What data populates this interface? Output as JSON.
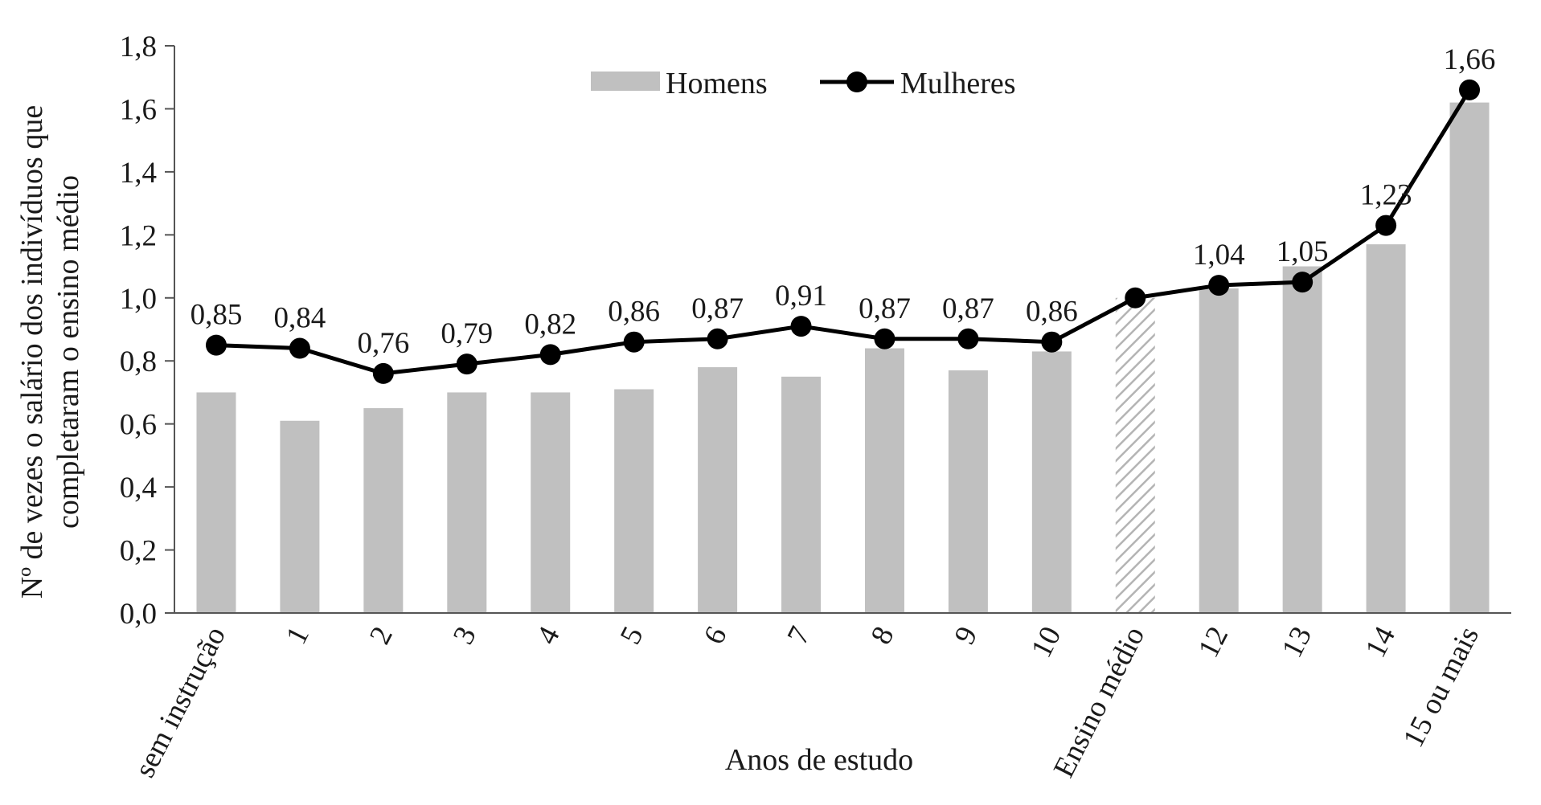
{
  "chart_data": {
    "type": "bar",
    "title": "",
    "xlabel": "Anos de estudo",
    "ylabel_lines": [
      "Nº de vezes o salário dos indivíduos que",
      "completaram o ensino médio"
    ],
    "ylim": [
      0,
      1.8
    ],
    "yticks": [
      "0,0",
      "0,2",
      "0,4",
      "0,6",
      "0,8",
      "1,0",
      "1,2",
      "1,4",
      "1,6",
      "1,8"
    ],
    "categories": [
      "sem instrução",
      "1",
      "2",
      "3",
      "4",
      "5",
      "6",
      "7",
      "8",
      "9",
      "10",
      "Ensino médio",
      "12",
      "13",
      "14",
      "15 ou mais"
    ],
    "highlight_category": "Ensino médio",
    "grid": false,
    "legend_position": "top-center",
    "series": [
      {
        "name": "Homens",
        "kind": "bar",
        "color": "#c0c0c0",
        "values": [
          0.7,
          0.61,
          0.65,
          0.7,
          0.7,
          0.71,
          0.78,
          0.75,
          0.84,
          0.77,
          0.83,
          1.0,
          1.03,
          1.1,
          1.17,
          1.62
        ]
      },
      {
        "name": "Mulheres",
        "kind": "line",
        "color": "#000000",
        "values": [
          0.85,
          0.84,
          0.76,
          0.79,
          0.82,
          0.86,
          0.87,
          0.91,
          0.87,
          0.87,
          0.86,
          1.0,
          1.04,
          1.05,
          1.23,
          1.66
        ],
        "labels": [
          "0,85",
          "0,84",
          "0,76",
          "0,79",
          "0,82",
          "0,86",
          "0,87",
          "0,91",
          "0,87",
          "0,87",
          "0,86",
          "",
          "1,04",
          "1,05",
          "1,23",
          "1,66"
        ]
      }
    ]
  }
}
